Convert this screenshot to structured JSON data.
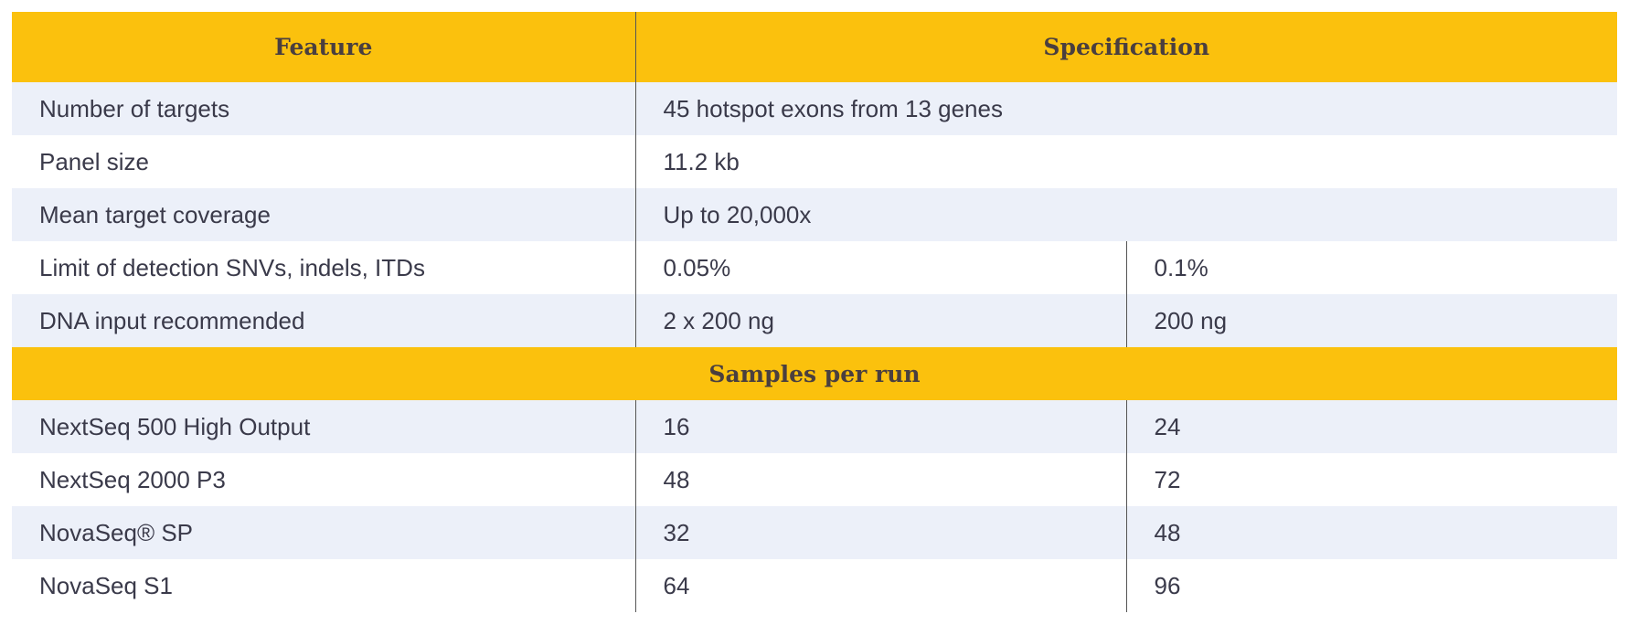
{
  "table": {
    "header": {
      "feature": "Feature",
      "specification": "Specification"
    },
    "spanned_rows": [
      {
        "label": "Number of targets",
        "value": "45 hotspot exons from 13 genes"
      },
      {
        "label": "Panel size",
        "value": "11.2 kb"
      },
      {
        "label": "Mean target coverage",
        "value": "Up to 20,000x"
      }
    ],
    "split_rows": [
      {
        "label": "Limit of detection SNVs, indels, ITDs",
        "value_a": "0.05%",
        "value_b": "0.1%"
      },
      {
        "label": "DNA input recommended",
        "value_a": "2 x 200 ng",
        "value_b": "200 ng"
      }
    ],
    "section_title": "Samples per run",
    "sample_rows": [
      {
        "label": "NextSeq 500 High Output",
        "value_a": "16",
        "value_b": "24"
      },
      {
        "label": "NextSeq 2000 P3",
        "value_a": "48",
        "value_b": "72"
      },
      {
        "label": "NovaSeq® SP",
        "value_a": "32",
        "value_b": "48"
      },
      {
        "label": "NovaSeq S1",
        "value_a": "64",
        "value_b": "96"
      }
    ]
  },
  "colors": {
    "header_bg": "#fbc10d",
    "row_alt_bg": "#ecf0f9",
    "row_bg": "#ffffff",
    "text": "#3a3a4a"
  }
}
